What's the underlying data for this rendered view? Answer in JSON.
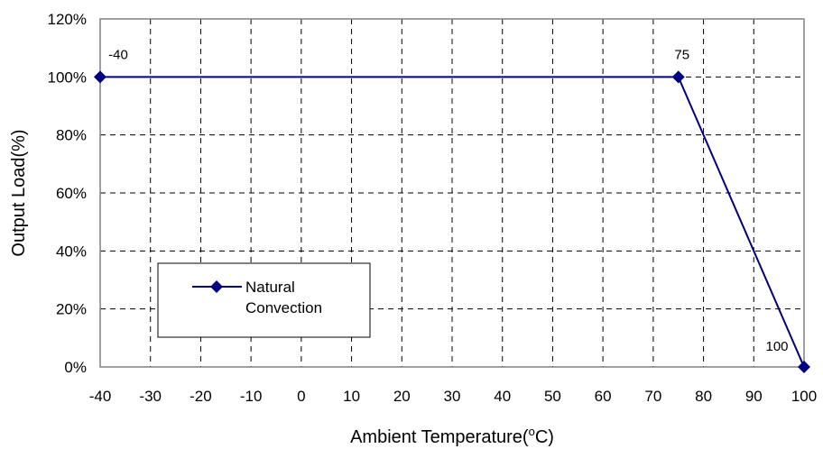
{
  "chart_data": {
    "type": "line",
    "xlabel": "Ambient Temperature(",
    "xlabel_sup": "o",
    "xlabel_unit": "C)",
    "ylabel": "Output Load(%)",
    "xlim": [
      -40,
      100
    ],
    "ylim": [
      0,
      120
    ],
    "xticks": [
      -40,
      -30,
      -20,
      -10,
      0,
      10,
      20,
      30,
      40,
      50,
      60,
      70,
      80,
      90,
      100
    ],
    "xtick_labels": [
      "-40",
      "-30",
      "-20",
      "-10",
      "0",
      "10",
      "20",
      "30",
      "40",
      "50",
      "60",
      "70",
      "80",
      "90",
      "100"
    ],
    "yticks": [
      0,
      20,
      40,
      60,
      80,
      100,
      120
    ],
    "ytick_labels": [
      "0%",
      "20%",
      "40%",
      "60%",
      "80%",
      "100%",
      "120%"
    ],
    "grid": true,
    "grid_style": "dashed",
    "legend_position": "lower-left",
    "series": [
      {
        "name": "Natural Convection",
        "legend_lines": [
          "Natural",
          "Convection"
        ],
        "color": "#000080",
        "marker": "diamond",
        "x": [
          -40,
          75,
          100
        ],
        "y": [
          100,
          100,
          0
        ]
      }
    ],
    "annotations": [
      {
        "text": "-40",
        "x": -40,
        "y": 100
      },
      {
        "text": "75",
        "x": 75,
        "y": 100
      },
      {
        "text": "100",
        "x": 100,
        "y": 0
      }
    ]
  }
}
